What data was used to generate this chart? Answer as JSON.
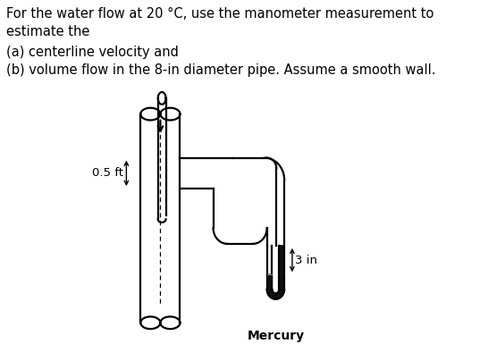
{
  "text_lines": [
    "For the water flow at 20 °C, use the manometer measurement to",
    "estimate the",
    "(a) centerline velocity and",
    "(b) volume flow in the 8-in diameter pipe. Assume a smooth wall."
  ],
  "label_05ft": "0.5 ft",
  "label_3in": "3 in",
  "label_mercury": "Mercury",
  "bg_color": "#ffffff",
  "line_color": "#000000",
  "mercury_color": "#111111",
  "text_fontsize": 10.5,
  "label_fontsize": 9.5,
  "lw": 1.6
}
